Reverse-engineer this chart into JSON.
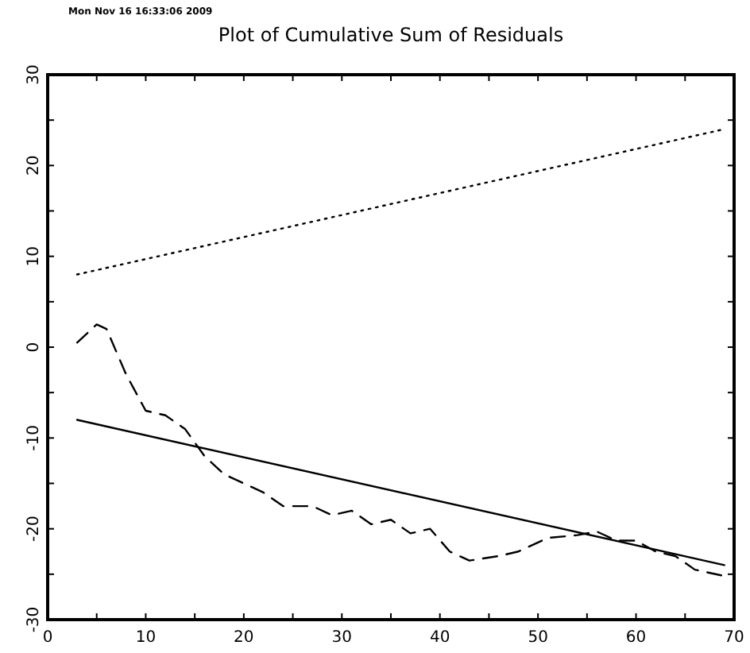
{
  "chart_data": {
    "type": "line",
    "title": "Plot of Cumulative Sum of Residuals",
    "annotations": [
      "Mon Nov 16 16:33:06 2009"
    ],
    "xlim": [
      0,
      70
    ],
    "ylim": [
      -30,
      30
    ],
    "xticks": [
      0,
      {
        "value": 5,
        "label": null
      },
      10,
      {
        "value": 15,
        "label": null
      },
      20,
      {
        "value": 25,
        "label": null
      },
      30,
      {
        "value": 35,
        "label": null
      },
      40,
      {
        "value": 45,
        "label": null
      },
      50,
      {
        "value": 55,
        "label": null
      },
      60,
      {
        "value": 65,
        "label": null
      },
      70
    ],
    "yticks": [
      -30,
      {
        "value": -25,
        "label": null
      },
      -20,
      {
        "value": -15,
        "label": null
      },
      -10,
      {
        "value": -5,
        "label": null
      },
      0,
      {
        "value": 5,
        "label": null
      },
      10,
      {
        "value": 15,
        "label": null
      },
      20,
      {
        "value": 25,
        "label": null
      },
      30
    ],
    "grid": false,
    "series": [
      {
        "color": "#000000",
        "line_style": "dashed",
        "x": [
          3,
          5,
          6,
          8,
          10,
          12,
          14,
          16,
          18,
          20,
          22,
          24,
          27,
          29,
          31,
          33,
          35,
          37,
          39,
          41,
          43,
          46,
          48,
          51,
          54,
          56,
          58,
          60,
          62,
          64,
          66,
          69
        ],
        "values": [
          0.5,
          2.5,
          2,
          -3,
          -7,
          -7.5,
          -9,
          -12,
          -14,
          -15,
          -16,
          -17.5,
          -17.5,
          -18.5,
          -18,
          -19.5,
          -19,
          -20.5,
          -20,
          -22.5,
          -23.5,
          -23,
          -22.5,
          -21,
          -20.7,
          -20.3,
          -21.3,
          -21.3,
          -22.5,
          -23,
          -24.5,
          -25.2
        ]
      },
      {
        "color": "#000000",
        "line_style": "solid",
        "x": [
          3,
          69
        ],
        "values": [
          -8,
          -24
        ]
      },
      {
        "color": "#000000",
        "line_style": "dotted",
        "x": [
          3,
          69
        ],
        "values": [
          8,
          24
        ]
      }
    ]
  }
}
